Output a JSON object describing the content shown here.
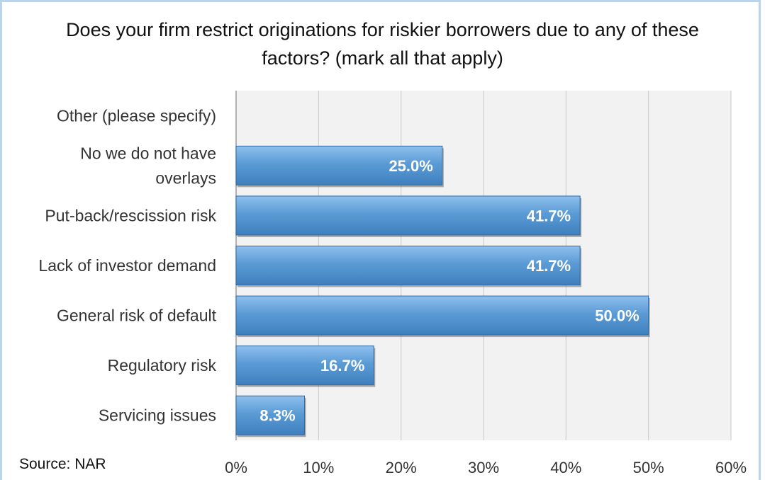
{
  "chart_data": {
    "type": "bar",
    "orientation": "horizontal",
    "title": "Does your firm restrict originations for riskier borrowers due to any of these\nfactors? (mark all that apply)",
    "categories": [
      "Other (please specify)",
      "No we do not have overlays",
      "Put-back/rescission risk",
      "Lack of investor demand",
      "General risk of default",
      "Regulatory risk",
      "Servicing issues"
    ],
    "category_lines": [
      [
        "Other (please specify)"
      ],
      [
        "No we do not have",
        "overlays"
      ],
      [
        "Put-back/rescission risk"
      ],
      [
        "Lack of investor demand"
      ],
      [
        "General risk of default"
      ],
      [
        "Regulatory risk"
      ],
      [
        "Servicing issues"
      ]
    ],
    "values": [
      null,
      25.0,
      41.7,
      41.7,
      50.0,
      16.7,
      8.3
    ],
    "data_labels": [
      "",
      "25.0%",
      "41.7%",
      "41.7%",
      "50.0%",
      "16.7%",
      "8.3%"
    ],
    "xlim": [
      0,
      60
    ],
    "xticks": [
      0,
      10,
      20,
      30,
      40,
      50,
      60
    ],
    "xtick_labels": [
      "0%",
      "10%",
      "20%",
      "30%",
      "40%",
      "50%",
      "60%"
    ],
    "grid": true,
    "bar_color": "#5b9bd5",
    "plot_background": "#f2f2f2",
    "source": "Source: NAR"
  }
}
